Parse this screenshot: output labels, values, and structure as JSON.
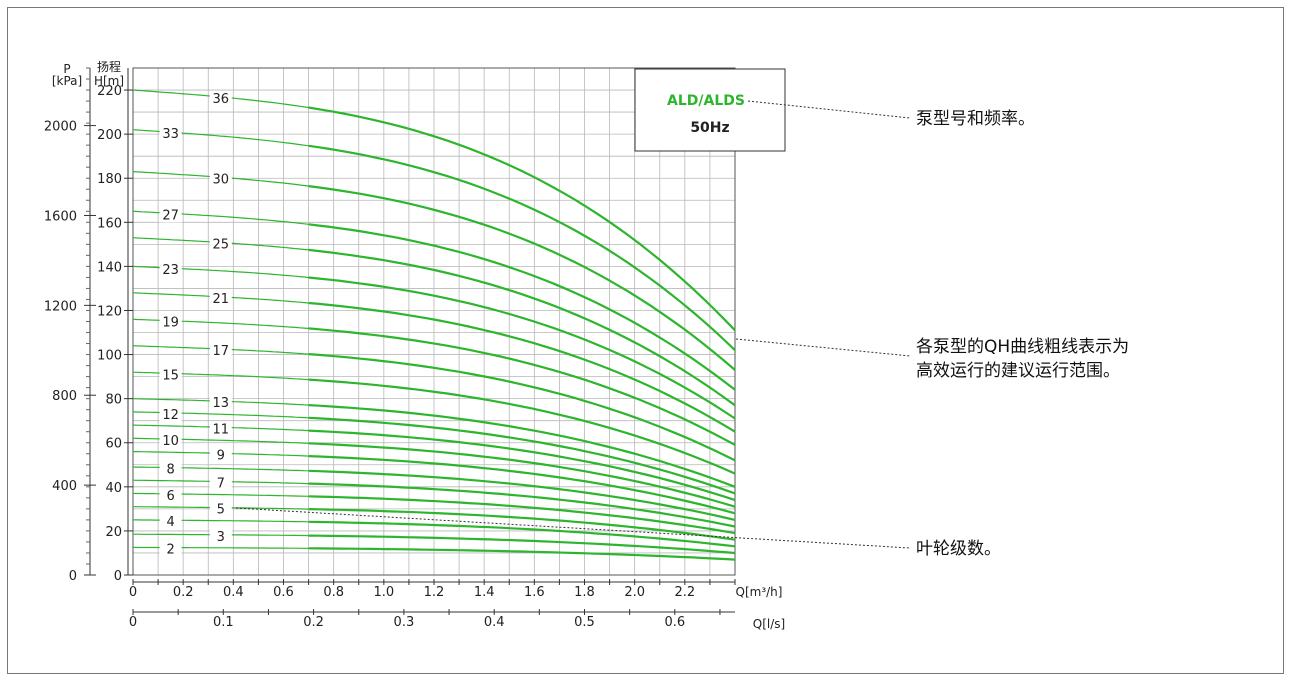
{
  "chart_data": {
    "type": "line",
    "legend_box": {
      "model": "ALD/ALDS",
      "frequency": "50Hz"
    },
    "y_left_label": {
      "line1": "P",
      "line2": "[kPa]"
    },
    "y_right_label": {
      "line1": "扬程",
      "line2": "H[m]"
    },
    "x_unit_top": "Q[m³/h]",
    "x_unit_bottom": "Q[l/s]",
    "y_ticks": [
      "0",
      "20",
      "40",
      "60",
      "80",
      "100",
      "120",
      "140",
      "160",
      "180",
      "200",
      "220"
    ],
    "p_ticks": [
      "0",
      "400",
      "800",
      "1200",
      "1600",
      "2000"
    ],
    "x_ticks_m3h": [
      "0",
      "0.2",
      "0.4",
      "0.6",
      "0.8",
      "1.0",
      "1.2",
      "1.4",
      "1.6",
      "1.8",
      "2.0",
      "2.2"
    ],
    "x_ticks_ls": [
      "0",
      "0.1",
      "0.2",
      "0.3",
      "0.4",
      "0.5",
      "0.6"
    ],
    "xlim_m3h": [
      0,
      2.4
    ],
    "ylim_m": [
      0,
      230
    ],
    "series": [
      {
        "name": "2",
        "shutoff": 12.5,
        "end": 7
      },
      {
        "name": "3",
        "shutoff": 18.5,
        "end": 10
      },
      {
        "name": "4",
        "shutoff": 25,
        "end": 13
      },
      {
        "name": "5",
        "shutoff": 31,
        "end": 16
      },
      {
        "name": "6",
        "shutoff": 37,
        "end": 19
      },
      {
        "name": "7",
        "shutoff": 43,
        "end": 22
      },
      {
        "name": "8",
        "shutoff": 49,
        "end": 25
      },
      {
        "name": "9",
        "shutoff": 56,
        "end": 28
      },
      {
        "name": "10",
        "shutoff": 62,
        "end": 31
      },
      {
        "name": "11",
        "shutoff": 68,
        "end": 34
      },
      {
        "name": "12",
        "shutoff": 74,
        "end": 37
      },
      {
        "name": "13",
        "shutoff": 80,
        "end": 40
      },
      {
        "name": "15",
        "shutoff": 92,
        "end": 46
      },
      {
        "name": "17",
        "shutoff": 104,
        "end": 52
      },
      {
        "name": "19",
        "shutoff": 116,
        "end": 59
      },
      {
        "name": "21",
        "shutoff": 128,
        "end": 65
      },
      {
        "name": "23",
        "shutoff": 140,
        "end": 71
      },
      {
        "name": "25",
        "shutoff": 153,
        "end": 77
      },
      {
        "name": "27",
        "shutoff": 165,
        "end": 84
      },
      {
        "name": "30",
        "shutoff": 183,
        "end": 93
      },
      {
        "name": "33",
        "shutoff": 202,
        "end": 102
      },
      {
        "name": "36",
        "shutoff": 220,
        "end": 111
      }
    ],
    "annotations": [
      {
        "lines": [
          "泵型号和频率。"
        ]
      },
      {
        "lines": [
          "各泵型的QH曲线粗线表示为",
          "高效运行的建议运行范围。"
        ]
      },
      {
        "lines": [
          "叶轮级数。"
        ]
      }
    ],
    "colors": {
      "curve": "#2db52d",
      "grid": "#b8b8b8",
      "model_text": "#2db52d"
    }
  }
}
